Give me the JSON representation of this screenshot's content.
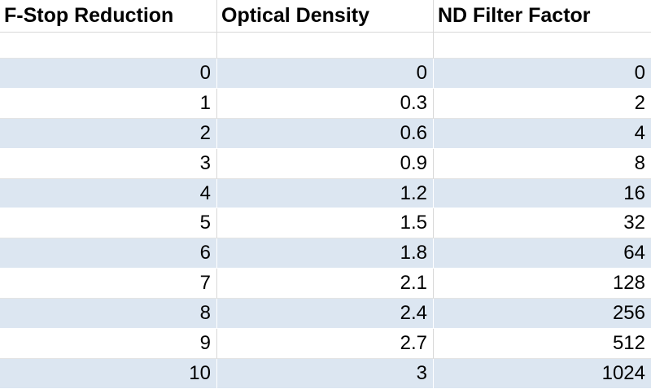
{
  "table": {
    "headers": [
      "F-Stop Reduction",
      "Optical Density",
      "ND Filter Factor"
    ],
    "rows": [
      [
        0,
        0,
        0
      ],
      [
        1,
        0.3,
        2
      ],
      [
        2,
        0.6,
        4
      ],
      [
        3,
        0.9,
        8
      ],
      [
        4,
        1.2,
        16
      ],
      [
        5,
        1.5,
        32
      ],
      [
        6,
        1.8,
        64
      ],
      [
        7,
        2.1,
        128
      ],
      [
        8,
        2.4,
        256
      ],
      [
        9,
        2.7,
        512
      ],
      [
        10,
        3,
        1024
      ]
    ]
  }
}
